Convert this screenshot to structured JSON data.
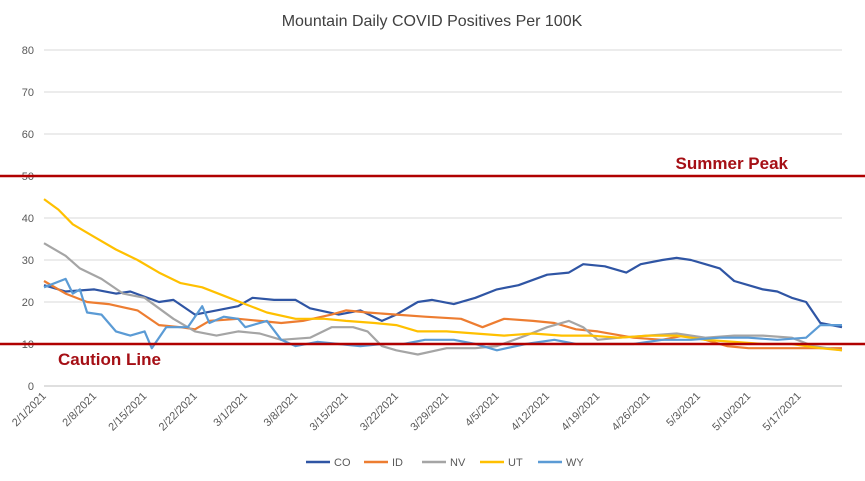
{
  "chart_data": {
    "type": "line",
    "title": "Mountain Daily COVID Positives Per 100K",
    "xlabel": "",
    "ylabel": "",
    "ylim": [
      0,
      80
    ],
    "yticks": [
      0,
      10,
      20,
      30,
      40,
      50,
      60,
      70,
      80
    ],
    "x_start": "2021-02-01",
    "x_end": "2021-05-23",
    "xtick_labels": [
      "2/1/2021",
      "2/8/2021",
      "2/15/2021",
      "2/22/2021",
      "3/1/2021",
      "3/8/2021",
      "3/15/2021",
      "3/22/2021",
      "3/29/2021",
      "4/5/2021",
      "4/12/2021",
      "4/19/2021",
      "4/26/2021",
      "5/3/2021",
      "5/10/2021",
      "5/17/2021"
    ],
    "grid": true,
    "legend_position": "bottom",
    "reference_lines": [
      {
        "label": "Summer Peak",
        "value": 50,
        "color": "#b00000"
      },
      {
        "label": "Caution Line",
        "value": 10,
        "color": "#b00000"
      }
    ],
    "series": [
      {
        "name": "CO",
        "color": "#2f55a4",
        "points": [
          [
            "2021-02-01",
            24
          ],
          [
            "2021-02-04",
            22.5
          ],
          [
            "2021-02-08",
            23
          ],
          [
            "2021-02-11",
            22
          ],
          [
            "2021-02-13",
            22.5
          ],
          [
            "2021-02-17",
            20
          ],
          [
            "2021-02-19",
            20.5
          ],
          [
            "2021-02-22",
            17
          ],
          [
            "2021-02-25",
            18
          ],
          [
            "2021-02-28",
            19
          ],
          [
            "2021-03-02",
            21
          ],
          [
            "2021-03-05",
            20.5
          ],
          [
            "2021-03-08",
            20.5
          ],
          [
            "2021-03-10",
            18.5
          ],
          [
            "2021-03-14",
            17
          ],
          [
            "2021-03-17",
            18
          ],
          [
            "2021-03-20",
            15.5
          ],
          [
            "2021-03-22",
            17
          ],
          [
            "2021-03-25",
            20
          ],
          [
            "2021-03-27",
            20.5
          ],
          [
            "2021-03-30",
            19.5
          ],
          [
            "2021-04-02",
            21
          ],
          [
            "2021-04-05",
            23
          ],
          [
            "2021-04-08",
            24
          ],
          [
            "2021-04-12",
            26.5
          ],
          [
            "2021-04-15",
            27
          ],
          [
            "2021-04-17",
            29
          ],
          [
            "2021-04-20",
            28.5
          ],
          [
            "2021-04-23",
            27
          ],
          [
            "2021-04-25",
            29
          ],
          [
            "2021-04-28",
            30
          ],
          [
            "2021-04-30",
            30.5
          ],
          [
            "2021-05-02",
            30
          ],
          [
            "2021-05-04",
            29
          ],
          [
            "2021-05-06",
            28
          ],
          [
            "2021-05-08",
            25
          ],
          [
            "2021-05-10",
            24
          ],
          [
            "2021-05-12",
            23
          ],
          [
            "2021-05-14",
            22.5
          ],
          [
            "2021-05-16",
            21
          ],
          [
            "2021-05-18",
            20
          ],
          [
            "2021-05-20",
            15
          ],
          [
            "2021-05-23",
            14
          ]
        ]
      },
      {
        "name": "ID",
        "color": "#ed7d31",
        "points": [
          [
            "2021-02-01",
            25
          ],
          [
            "2021-02-04",
            22
          ],
          [
            "2021-02-07",
            20
          ],
          [
            "2021-02-10",
            19.5
          ],
          [
            "2021-02-14",
            18
          ],
          [
            "2021-02-17",
            14.5
          ],
          [
            "2021-02-20",
            14
          ],
          [
            "2021-02-22",
            13.5
          ],
          [
            "2021-02-24",
            15.5
          ],
          [
            "2021-02-28",
            16
          ],
          [
            "2021-03-03",
            15.5
          ],
          [
            "2021-03-06",
            15
          ],
          [
            "2021-03-09",
            15.5
          ],
          [
            "2021-03-13",
            17
          ],
          [
            "2021-03-15",
            18
          ],
          [
            "2021-03-18",
            17.5
          ],
          [
            "2021-03-22",
            17
          ],
          [
            "2021-03-26",
            16.5
          ],
          [
            "2021-03-31",
            16
          ],
          [
            "2021-04-03",
            14
          ],
          [
            "2021-04-06",
            16
          ],
          [
            "2021-04-10",
            15.5
          ],
          [
            "2021-04-13",
            15
          ],
          [
            "2021-04-16",
            13.5
          ],
          [
            "2021-04-19",
            13
          ],
          [
            "2021-04-24",
            11.5
          ],
          [
            "2021-04-28",
            11
          ],
          [
            "2021-05-01",
            12
          ],
          [
            "2021-05-04",
            11
          ],
          [
            "2021-05-07",
            9.5
          ],
          [
            "2021-05-10",
            9
          ],
          [
            "2021-05-15",
            9
          ],
          [
            "2021-05-19",
            9
          ],
          [
            "2021-05-23",
            9
          ]
        ]
      },
      {
        "name": "NV",
        "color": "#a5a5a5",
        "points": [
          [
            "2021-02-01",
            34
          ],
          [
            "2021-02-04",
            31
          ],
          [
            "2021-02-06",
            28
          ],
          [
            "2021-02-09",
            25.5
          ],
          [
            "2021-02-12",
            22
          ],
          [
            "2021-02-15",
            21
          ],
          [
            "2021-02-19",
            16
          ],
          [
            "2021-02-22",
            13
          ],
          [
            "2021-02-25",
            12
          ],
          [
            "2021-02-28",
            13
          ],
          [
            "2021-03-03",
            12.5
          ],
          [
            "2021-03-06",
            11
          ],
          [
            "2021-03-10",
            11.5
          ],
          [
            "2021-03-13",
            14
          ],
          [
            "2021-03-16",
            14
          ],
          [
            "2021-03-18",
            13
          ],
          [
            "2021-03-20",
            9.5
          ],
          [
            "2021-03-22",
            8.5
          ],
          [
            "2021-03-25",
            7.5
          ],
          [
            "2021-03-29",
            9
          ],
          [
            "2021-04-02",
            9
          ],
          [
            "2021-04-05",
            9.5
          ],
          [
            "2021-04-09",
            12
          ],
          [
            "2021-04-12",
            14
          ],
          [
            "2021-04-15",
            15.5
          ],
          [
            "2021-04-17",
            14
          ],
          [
            "2021-04-19",
            11
          ],
          [
            "2021-04-22",
            11.5
          ],
          [
            "2021-04-26",
            12
          ],
          [
            "2021-04-30",
            12.5
          ],
          [
            "2021-05-04",
            11.5
          ],
          [
            "2021-05-08",
            12
          ],
          [
            "2021-05-12",
            12
          ],
          [
            "2021-05-16",
            11.5
          ],
          [
            "2021-05-19",
            9.5
          ],
          [
            "2021-05-23",
            8.5
          ]
        ]
      },
      {
        "name": "UT",
        "color": "#ffc000",
        "points": [
          [
            "2021-02-01",
            44.5
          ],
          [
            "2021-02-03",
            42
          ],
          [
            "2021-02-05",
            38.5
          ],
          [
            "2021-02-08",
            35.5
          ],
          [
            "2021-02-11",
            32.5
          ],
          [
            "2021-02-14",
            30
          ],
          [
            "2021-02-17",
            27
          ],
          [
            "2021-02-20",
            24.5
          ],
          [
            "2021-02-23",
            23.5
          ],
          [
            "2021-02-26",
            21.5
          ],
          [
            "2021-03-01",
            19.5
          ],
          [
            "2021-03-04",
            17.5
          ],
          [
            "2021-03-08",
            16
          ],
          [
            "2021-03-12",
            16
          ],
          [
            "2021-03-15",
            15.5
          ],
          [
            "2021-03-19",
            15
          ],
          [
            "2021-03-22",
            14.5
          ],
          [
            "2021-03-25",
            13
          ],
          [
            "2021-03-29",
            13
          ],
          [
            "2021-04-02",
            12.5
          ],
          [
            "2021-04-06",
            12
          ],
          [
            "2021-04-10",
            12.5
          ],
          [
            "2021-04-14",
            12
          ],
          [
            "2021-04-18",
            12
          ],
          [
            "2021-04-22",
            11.5
          ],
          [
            "2021-04-26",
            12
          ],
          [
            "2021-04-30",
            12
          ],
          [
            "2021-05-04",
            11
          ],
          [
            "2021-05-08",
            10.5
          ],
          [
            "2021-05-12",
            10
          ],
          [
            "2021-05-16",
            10
          ],
          [
            "2021-05-20",
            9
          ],
          [
            "2021-05-23",
            8.5
          ]
        ]
      },
      {
        "name": "WY",
        "color": "#5b9bd5",
        "points": [
          [
            "2021-02-01",
            23.5
          ],
          [
            "2021-02-04",
            25.5
          ],
          [
            "2021-02-05",
            22
          ],
          [
            "2021-02-06",
            23
          ],
          [
            "2021-02-07",
            17.5
          ],
          [
            "2021-02-09",
            17
          ],
          [
            "2021-02-11",
            13
          ],
          [
            "2021-02-13",
            12
          ],
          [
            "2021-02-15",
            13
          ],
          [
            "2021-02-16",
            9
          ],
          [
            "2021-02-18",
            14
          ],
          [
            "2021-02-21",
            14
          ],
          [
            "2021-02-23",
            19
          ],
          [
            "2021-02-24",
            15
          ],
          [
            "2021-02-26",
            16.5
          ],
          [
            "2021-02-28",
            16
          ],
          [
            "2021-03-01",
            14
          ],
          [
            "2021-03-04",
            15.5
          ],
          [
            "2021-03-06",
            11
          ],
          [
            "2021-03-08",
            9.5
          ],
          [
            "2021-03-11",
            10.5
          ],
          [
            "2021-03-14",
            10
          ],
          [
            "2021-03-17",
            9.5
          ],
          [
            "2021-03-20",
            10
          ],
          [
            "2021-03-23",
            10
          ],
          [
            "2021-03-26",
            11
          ],
          [
            "2021-03-30",
            11
          ],
          [
            "2021-04-02",
            10
          ],
          [
            "2021-04-05",
            8.5
          ],
          [
            "2021-04-09",
            10
          ],
          [
            "2021-04-13",
            11
          ],
          [
            "2021-04-16",
            10
          ],
          [
            "2021-04-20",
            10
          ],
          [
            "2021-04-24",
            10
          ],
          [
            "2021-04-28",
            11
          ],
          [
            "2021-05-02",
            11
          ],
          [
            "2021-05-06",
            11.5
          ],
          [
            "2021-05-10",
            11.5
          ],
          [
            "2021-05-14",
            11
          ],
          [
            "2021-05-18",
            11.5
          ],
          [
            "2021-05-20",
            14.5
          ],
          [
            "2021-05-23",
            14.5
          ]
        ]
      }
    ]
  }
}
